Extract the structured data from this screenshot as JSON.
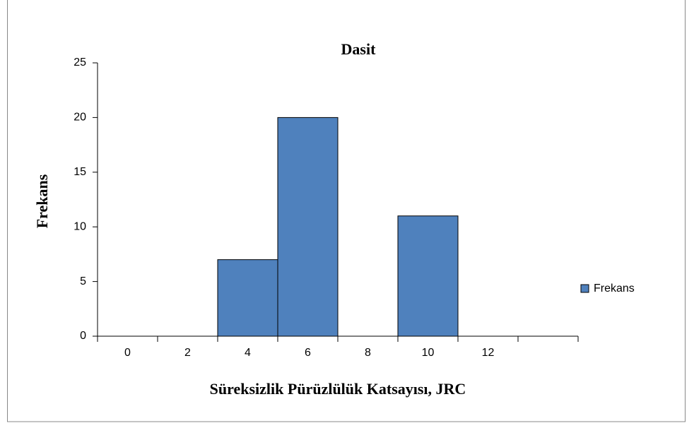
{
  "chart_data": {
    "type": "bar",
    "title": "Dasit",
    "x_label": "Süreksizlik  Pürüzlülük  Katsayısı, JRC",
    "y_label": "Frekans",
    "categories": [
      "0",
      "2",
      "4",
      "6",
      "8",
      "10",
      "12",
      null
    ],
    "series": [
      {
        "name": "Frekans",
        "color": "#4f81bd",
        "values": [
          0,
          0,
          7,
          20,
          0,
          11,
          0,
          0
        ]
      }
    ],
    "ylim": [
      0,
      25
    ],
    "yticks": [
      0,
      5,
      10,
      15,
      20,
      25
    ],
    "grid": false,
    "legend": "right"
  }
}
